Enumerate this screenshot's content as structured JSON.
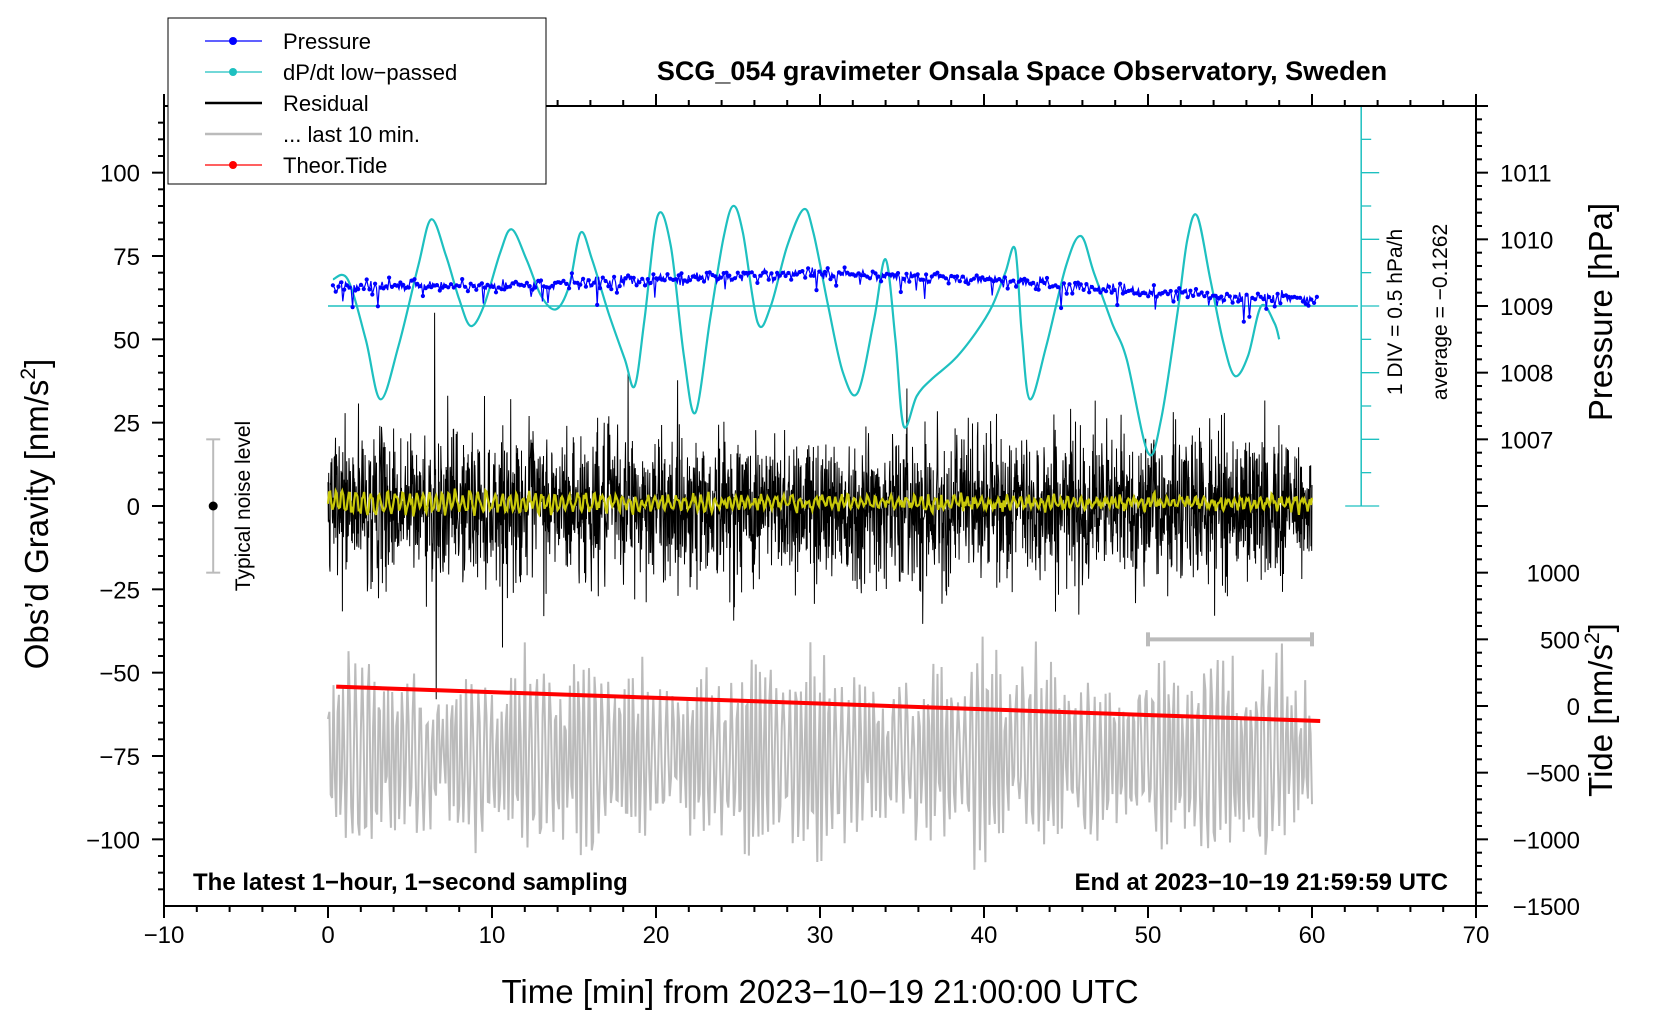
{
  "chart_data": {
    "type": "line",
    "title": "SCG_054 gravimeter Onsala Space Observatory, Sweden",
    "xlabel": "Time [min] from 2023−10−19 21:00:00 UTC",
    "ylabel_left": "Obs’d Gravity [nm/s",
    "ylabel_left_sup": "2",
    "ylabel_left_end": "]",
    "ylabel_right_top": "Pressure [hPa]",
    "ylabel_right_bottom": "Tide [nm/s",
    "ylabel_right_bottom_sup": "2",
    "ylabel_right_bottom_end": "]",
    "xlim": [
      -10,
      70
    ],
    "ylim": [
      -120,
      120
    ],
    "x_ticks": [
      -10,
      0,
      10,
      20,
      30,
      40,
      50,
      60,
      70
    ],
    "x_tick_labels": [
      "−10",
      "0",
      "10",
      "20",
      "30",
      "40",
      "50",
      "60",
      "70"
    ],
    "y_ticks": [
      100,
      75,
      50,
      25,
      0,
      -25,
      -50,
      -75,
      -100
    ],
    "y_tick_labels": [
      "100",
      "75",
      "50",
      "25",
      "0",
      "−25",
      "−50",
      "−75",
      "−100"
    ],
    "pressure_axis": {
      "ticks": [
        1011,
        1010,
        1009,
        1008,
        1007
      ],
      "tick_labels": [
        "1011",
        "1010",
        "1009",
        "1008",
        "1007"
      ],
      "gravity_at": [
        100,
        80,
        60,
        40,
        20
      ]
    },
    "tide_axis": {
      "ticks": [
        1000,
        500,
        0,
        -500,
        -1000,
        -1500
      ],
      "tick_labels": [
        "1000",
        "500",
        "0",
        "−500",
        "−1000",
        "−1500"
      ],
      "gravity_at": [
        -20,
        -40,
        -60,
        -80,
        -100,
        -120
      ]
    },
    "legend": {
      "placement": "top-left",
      "entries": [
        {
          "label": "Pressure",
          "color": "#0000ff",
          "style": "line-dot"
        },
        {
          "label": "dP/dt low−passed",
          "color": "#1ec0c0",
          "style": "line-dot"
        },
        {
          "label": "Residual",
          "color": "#000000",
          "style": "line"
        },
        {
          "label": "... last 10 min.",
          "color": "#bbbbbb",
          "style": "line"
        },
        {
          "label": "Theor.Tide",
          "color": "#ff0000",
          "style": "line-dot"
        }
      ]
    },
    "series": [
      {
        "name": "Pressure",
        "color": "#0000ff",
        "unit": "hPa",
        "x_range": [
          0.3,
          60.3
        ],
        "approx_values": [
          [
            0,
            1009.3
          ],
          [
            10,
            1009.3
          ],
          [
            20,
            1009.4
          ],
          [
            30,
            1009.5
          ],
          [
            40,
            1009.4
          ],
          [
            50,
            1009.2
          ],
          [
            60,
            1009.1
          ]
        ]
      },
      {
        "name": "dP/dt low-passed",
        "color": "#1ec0c0",
        "reference_line_gravity": 60,
        "keypoints": [
          [
            0.3,
            68
          ],
          [
            1.2,
            68
          ],
          [
            2.3,
            50
          ],
          [
            3.2,
            32
          ],
          [
            4.3,
            48
          ],
          [
            5.5,
            72
          ],
          [
            6.3,
            86
          ],
          [
            7.2,
            75
          ],
          [
            8.0,
            62
          ],
          [
            8.7,
            54
          ],
          [
            9.5,
            60
          ],
          [
            10.5,
            76
          ],
          [
            11.2,
            83
          ],
          [
            12.1,
            74
          ],
          [
            13.0,
            63
          ],
          [
            13.9,
            59
          ],
          [
            14.7,
            66
          ],
          [
            15.4,
            82
          ],
          [
            16.1,
            74
          ],
          [
            17.1,
            58
          ],
          [
            18.1,
            44
          ],
          [
            18.7,
            36
          ],
          [
            19.3,
            56
          ],
          [
            20.1,
            87
          ],
          [
            20.9,
            78
          ],
          [
            21.7,
            45
          ],
          [
            22.4,
            28
          ],
          [
            23.3,
            56
          ],
          [
            24.1,
            80
          ],
          [
            24.7,
            90
          ],
          [
            25.3,
            82
          ],
          [
            26.2,
            55
          ],
          [
            27.0,
            60
          ],
          [
            28.0,
            78
          ],
          [
            29.0,
            89
          ],
          [
            29.6,
            82
          ],
          [
            30.5,
            60
          ],
          [
            31.4,
            40
          ],
          [
            32.3,
            34
          ],
          [
            33.3,
            56
          ],
          [
            34.0,
            74
          ],
          [
            34.6,
            50
          ],
          [
            35.1,
            24
          ],
          [
            35.9,
            33
          ],
          [
            36.8,
            38
          ],
          [
            38.2,
            44
          ],
          [
            39.5,
            52
          ],
          [
            40.5,
            60
          ],
          [
            41.3,
            70
          ],
          [
            41.9,
            77
          ],
          [
            42.3,
            52
          ],
          [
            42.8,
            32
          ],
          [
            43.8,
            48
          ],
          [
            45.0,
            72
          ],
          [
            45.9,
            81
          ],
          [
            46.7,
            70
          ],
          [
            47.8,
            55
          ],
          [
            48.7,
            44
          ],
          [
            50.0,
            16
          ],
          [
            50.8,
            26
          ],
          [
            51.8,
            58
          ],
          [
            52.4,
            80
          ],
          [
            53.0,
            87
          ],
          [
            53.8,
            68
          ],
          [
            54.6,
            49
          ],
          [
            55.3,
            39
          ],
          [
            56.1,
            45
          ],
          [
            56.9,
            60
          ],
          [
            57.7,
            55
          ],
          [
            58.0,
            50
          ]
        ]
      },
      {
        "name": "Residual",
        "color": "#000000",
        "x_range": [
          0,
          60
        ],
        "typical_range": [
          -25,
          25
        ],
        "extremes": [
          [
            6.5,
            58
          ],
          [
            6.6,
            -58
          ],
          [
            18.3,
            40
          ]
        ]
      },
      {
        "name": "Residual (smoothed)",
        "color": "#c8c80a",
        "x_range": [
          0,
          60
        ],
        "approx_level": 1
      },
      {
        "name": "... last 10 min.",
        "color": "#bbbbbb",
        "x_range": [
          0,
          60
        ],
        "center": -75,
        "amplitude": 30
      },
      {
        "name": "Theor.Tide",
        "color": "#ff0000",
        "x_range": [
          0.5,
          60.5
        ],
        "gravity_values": [
          -54.2,
          -64.5
        ]
      }
    ],
    "annotations": {
      "noise_label": "Typical noise level",
      "noise_range": [
        -20,
        20
      ],
      "noise_x": -7,
      "div_label": "1 DIV = 0.5 hPa/h",
      "average_label": "average = −0.1262",
      "bottom_left_text": "The latest 1−hour, 1−second sampling",
      "bottom_right_text": "End at 2023−10−19 21:59:59 UTC",
      "last10_bracket": [
        50,
        60
      ],
      "last10_bracket_y": -40,
      "div_scale_x": 63.0,
      "div_scale_range": [
        0,
        120
      ]
    }
  }
}
